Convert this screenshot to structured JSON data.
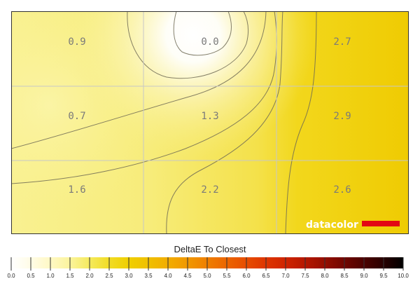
{
  "chart_data": {
    "type": "heatmap",
    "rows": 3,
    "cols": 3,
    "values": [
      [
        0.9,
        0.0,
        2.7
      ],
      [
        0.7,
        1.3,
        2.9
      ],
      [
        1.6,
        2.2,
        2.6
      ]
    ],
    "labels": [
      [
        "0.9",
        "0.0",
        "2.7"
      ],
      [
        "0.7",
        "1.3",
        "2.9"
      ],
      [
        "1.6",
        "2.2",
        "2.6"
      ]
    ],
    "grid": true,
    "contours": true,
    "colorbar": {
      "title": "DeltaE To Closest",
      "min": 0.0,
      "max": 10.0,
      "ticks": [
        "0.0",
        "0.5",
        "1.0",
        "1.5",
        "2.0",
        "2.5",
        "3.0",
        "3.5",
        "4.0",
        "4.5",
        "5.0",
        "5.5",
        "6.0",
        "6.5",
        "7.0",
        "7.5",
        "8.0",
        "8.5",
        "9.0",
        "9.5",
        "10.0"
      ],
      "colors": [
        "#ffffff",
        "#fffce6",
        "#fff8c4",
        "#fbf49c",
        "#f5ea5c",
        "#f1dc24",
        "#f0cf00",
        "#f0c000",
        "#f2ad00",
        "#f19800",
        "#ef7f00",
        "#ec6500",
        "#e74d00",
        "#de3500",
        "#cf2400",
        "#b51700",
        "#940e00",
        "#700600",
        "#4c0200",
        "#280000",
        "#000000"
      ]
    }
  },
  "logo": {
    "text": "datacolor",
    "bar_color": "#e30613"
  }
}
